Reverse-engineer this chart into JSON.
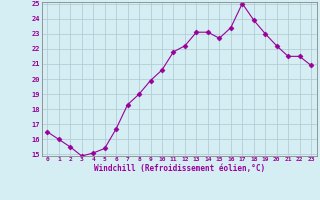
{
  "x": [
    0,
    1,
    2,
    3,
    4,
    5,
    6,
    7,
    8,
    9,
    10,
    11,
    12,
    13,
    14,
    15,
    16,
    17,
    18,
    19,
    20,
    21,
    22,
    23
  ],
  "y": [
    16.5,
    16.0,
    15.5,
    14.9,
    15.1,
    15.4,
    16.7,
    18.3,
    19.0,
    19.9,
    20.6,
    21.8,
    22.2,
    23.1,
    23.1,
    22.7,
    23.4,
    25.0,
    23.9,
    23.0,
    22.2,
    21.5,
    21.5,
    20.9
  ],
  "line_color": "#990099",
  "marker": "D",
  "markersize": 2.5,
  "bg_color": "#d4eef4",
  "grid_color": "#b0c8d0",
  "xlabel": "Windchill (Refroidissement éolien,°C)",
  "ylim": [
    15,
    25
  ],
  "xlim": [
    -0.5,
    23.5
  ],
  "yticks": [
    15,
    16,
    17,
    18,
    19,
    20,
    21,
    22,
    23,
    24,
    25
  ],
  "xticks": [
    0,
    1,
    2,
    3,
    4,
    5,
    6,
    7,
    8,
    9,
    10,
    11,
    12,
    13,
    14,
    15,
    16,
    17,
    18,
    19,
    20,
    21,
    22,
    23
  ]
}
